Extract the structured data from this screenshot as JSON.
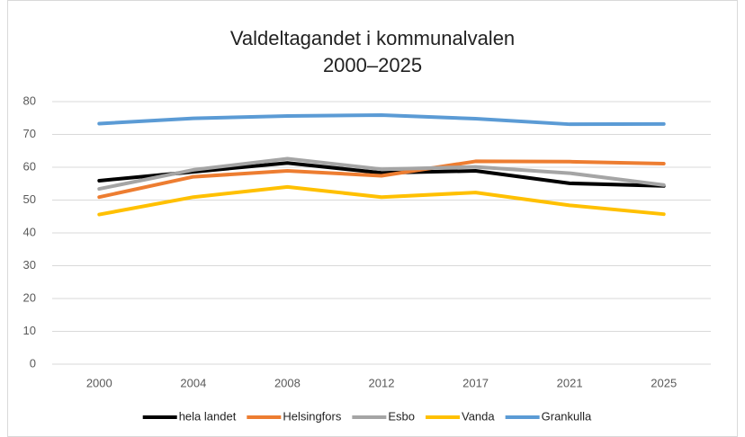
{
  "chart_data": {
    "type": "line",
    "title": [
      "Valdeltagandet i kommunalvalen",
      "2000–2025"
    ],
    "categories": [
      "2000",
      "2004",
      "2008",
      "2012",
      "2017",
      "2021",
      "2025"
    ],
    "series": [
      {
        "name": "hela landet",
        "color": "#000000",
        "values": [
          55.9,
          58.6,
          61.3,
          58.3,
          58.9,
          55.1,
          54.3
        ]
      },
      {
        "name": "Helsingfors",
        "color": "#ed7d31",
        "values": [
          50.9,
          57.1,
          58.9,
          57.4,
          61.8,
          61.7,
          61.1
        ]
      },
      {
        "name": "Esbo",
        "color": "#a5a5a5",
        "values": [
          53.4,
          59.2,
          62.6,
          59.4,
          60.1,
          58.2,
          54.6
        ]
      },
      {
        "name": "Vanda",
        "color": "#ffc000",
        "values": [
          45.6,
          50.9,
          54.0,
          50.9,
          52.3,
          48.4,
          45.7
        ]
      },
      {
        "name": "Grankulla",
        "color": "#5b9bd5",
        "values": [
          73.3,
          74.9,
          75.6,
          75.9,
          74.8,
          73.1,
          73.2
        ]
      }
    ],
    "ylim": [
      0,
      80
    ],
    "yticks": [
      0,
      10,
      20,
      30,
      40,
      50,
      60,
      70,
      80
    ],
    "grid": true,
    "legend": "bottom"
  }
}
